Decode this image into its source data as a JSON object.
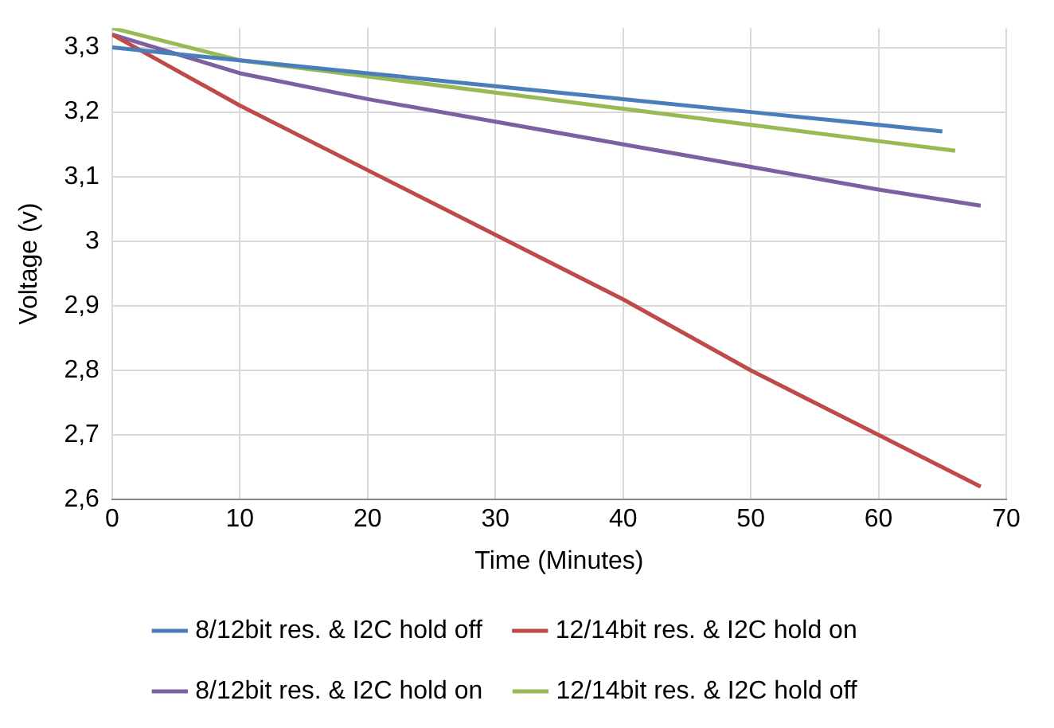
{
  "chart_data": {
    "type": "line",
    "xlabel": "Time (Minutes)",
    "ylabel": "Voltage (v)",
    "xlim": [
      0,
      70
    ],
    "xticks": [
      0,
      10,
      20,
      30,
      40,
      50,
      60,
      70
    ],
    "ylim": [
      2.6,
      3.33
    ],
    "yticks": [
      {
        "value": 2.6,
        "label": "2,6"
      },
      {
        "value": 2.7,
        "label": "2,7"
      },
      {
        "value": 2.8,
        "label": "2,8"
      },
      {
        "value": 2.9,
        "label": "2,9"
      },
      {
        "value": 3,
        "label": "3"
      },
      {
        "value": 3.1,
        "label": "3,1"
      },
      {
        "value": 3.2,
        "label": "3,2"
      },
      {
        "value": 3.3,
        "label": "3,3"
      }
    ],
    "grid": true,
    "legend": "bottom",
    "marker": "none",
    "line_style": "solid",
    "series": [
      {
        "name": "8/12bit res. & I2C hold off",
        "color": "#4a7ebb",
        "x": [
          0,
          10,
          20,
          30,
          40,
          50,
          60,
          65
        ],
        "values": [
          3.3,
          3.28,
          3.26,
          3.24,
          3.22,
          3.2,
          3.18,
          3.17
        ]
      },
      {
        "name": "12/14bit res. & I2C hold on",
        "color": "#be4b48",
        "x": [
          0,
          10,
          20,
          30,
          40,
          50,
          60,
          68
        ],
        "values": [
          3.32,
          3.21,
          3.11,
          3.01,
          2.91,
          2.8,
          2.7,
          2.62
        ]
      },
      {
        "name": "8/12bit res. & I2C hold on",
        "color": "#7d60a0",
        "x": [
          0,
          10,
          20,
          30,
          40,
          50,
          60,
          68
        ],
        "values": [
          3.32,
          3.26,
          3.22,
          3.185,
          3.15,
          3.115,
          3.08,
          3.055
        ]
      },
      {
        "name": "12/14bit res. & I2C hold off",
        "color": "#98b954",
        "x": [
          0,
          10,
          20,
          30,
          40,
          50,
          60,
          66
        ],
        "values": [
          3.33,
          3.28,
          3.255,
          3.23,
          3.205,
          3.18,
          3.155,
          3.14
        ]
      }
    ]
  }
}
